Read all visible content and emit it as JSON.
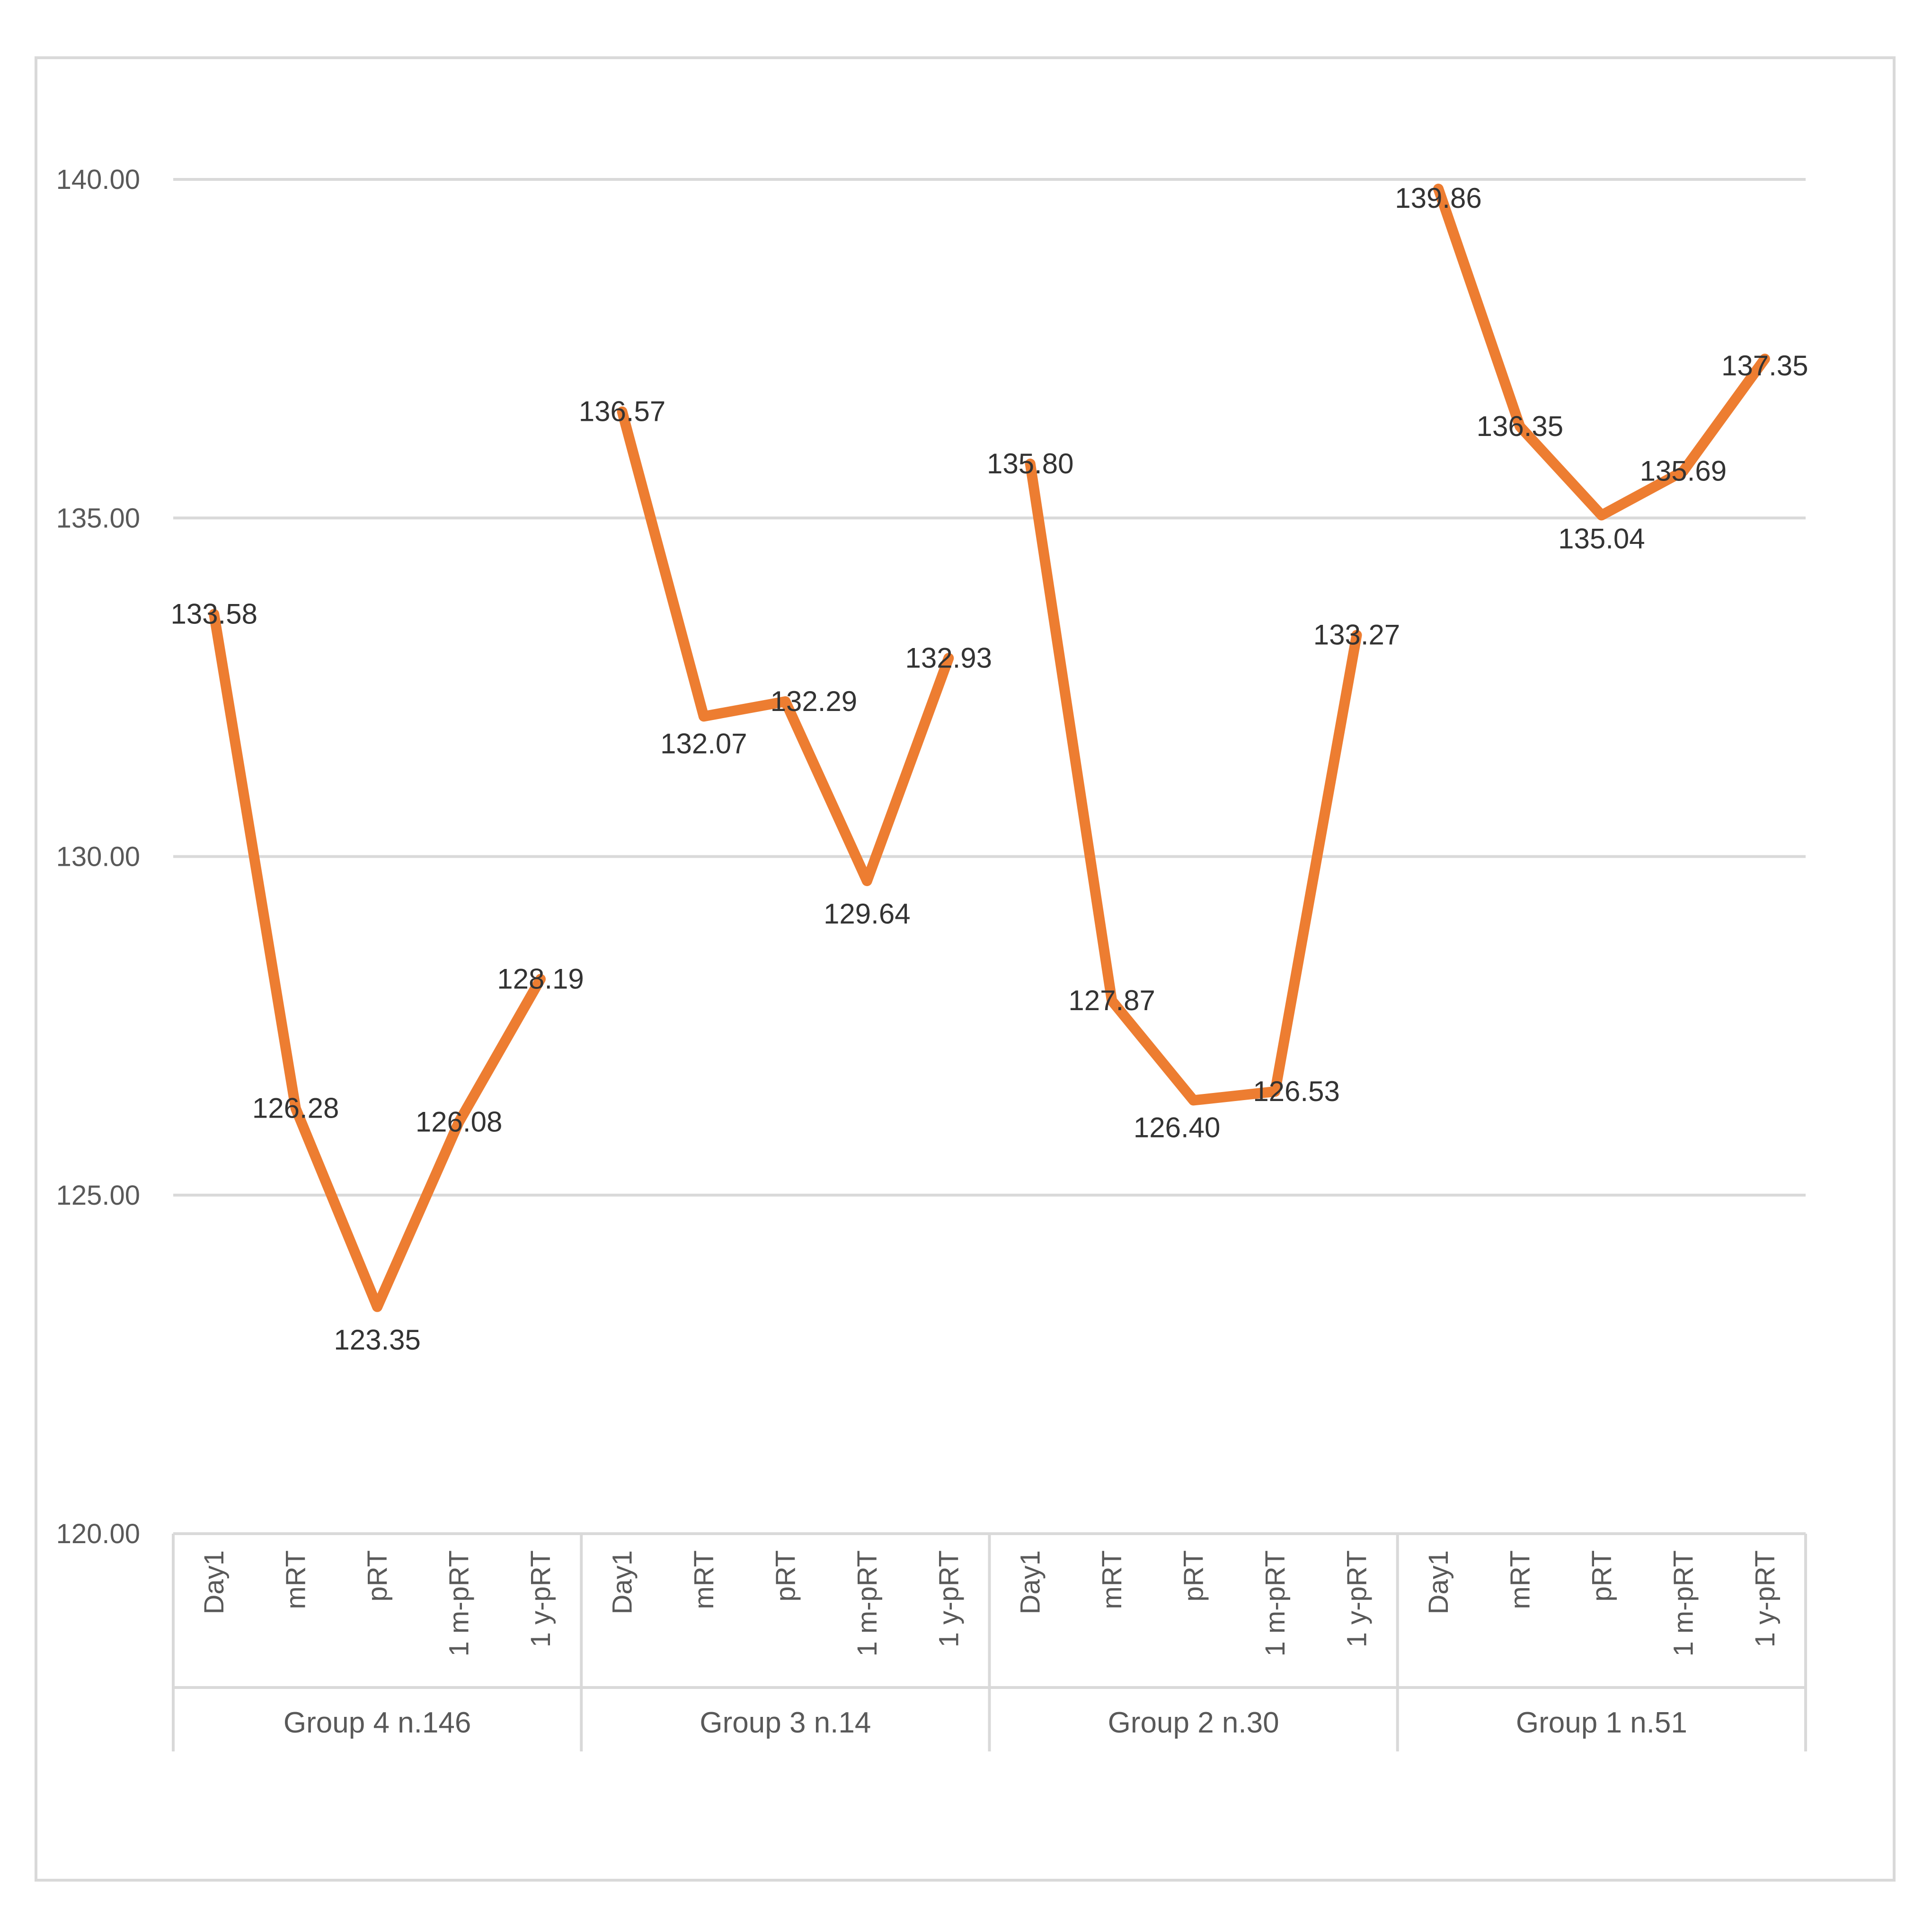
{
  "chart_data": {
    "type": "line",
    "title": "",
    "xlabel": "",
    "ylabel": "",
    "ylim": [
      120,
      141.8
    ],
    "yticks": [
      "120.00",
      "125.00",
      "130.00",
      "135.00",
      "140.00"
    ],
    "grid": true,
    "legend": "none",
    "line_color": "#ED7D31",
    "groups": [
      {
        "label": "Group 4 n.146",
        "categories": [
          "Day1",
          "mRT",
          "pRT",
          "1 m-pRT",
          "1 y-pRT"
        ],
        "values": [
          133.58,
          126.28,
          123.35,
          126.08,
          128.19
        ],
        "labels": [
          "133.58",
          "126.28",
          "123.35",
          "126.08",
          "128.19"
        ]
      },
      {
        "label": "Group 3 n.14",
        "categories": [
          "Day1",
          "mRT",
          "pRT",
          "1 m-pRT",
          "1 y-pRT"
        ],
        "values": [
          136.57,
          132.07,
          132.29,
          129.64,
          132.93
        ],
        "labels": [
          "136.57",
          "132.07",
          "132.29",
          "129.64",
          "132.93"
        ]
      },
      {
        "label": "Group 2 n.30",
        "categories": [
          "Day1",
          "mRT",
          "pRT",
          "1 m-pRT",
          "1 y-pRT"
        ],
        "values": [
          135.8,
          127.87,
          126.4,
          126.53,
          133.27
        ],
        "labels": [
          "135.80",
          "127.87",
          "126.40",
          "126.53",
          "133.27"
        ]
      },
      {
        "label": "Group 1 n.51",
        "categories": [
          "Day1",
          "mRT",
          "pRT",
          "1 m-pRT",
          "1 y-pRT"
        ],
        "values": [
          139.86,
          136.35,
          135.04,
          135.69,
          137.35
        ],
        "labels": [
          "139.86",
          "136.35",
          "135.04",
          "135.69",
          "137.35"
        ]
      }
    ]
  }
}
